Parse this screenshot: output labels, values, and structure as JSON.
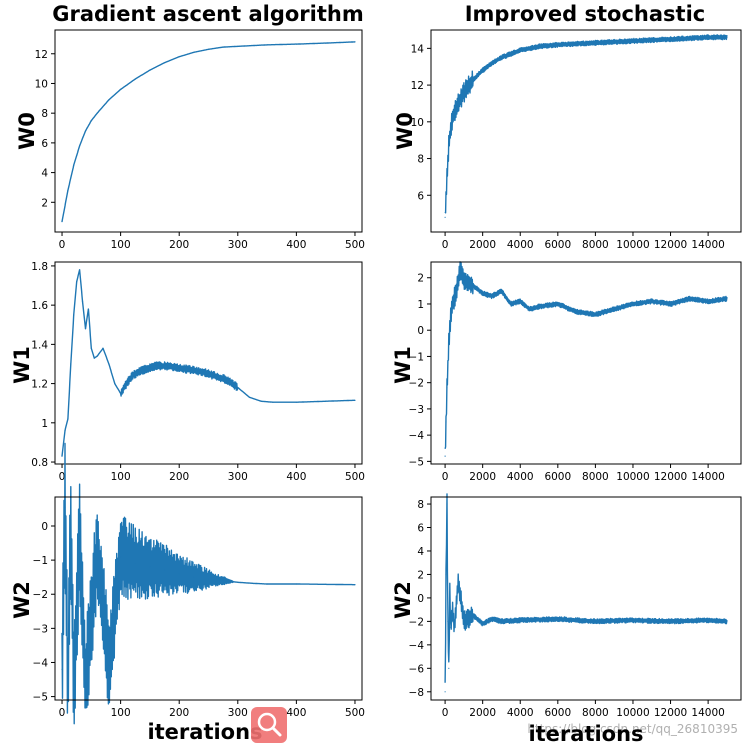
{
  "figure": {
    "left_title": "Gradient ascent algorithm",
    "right_title": "Improved stochastic",
    "left_xlabel": "iterations",
    "right_xlabel": "iterations",
    "watermark": "https://blog.csdn.net/qq_26810395",
    "badge_icon": "search-magnifier-icon",
    "line_color": "#1f77b4",
    "badge_color": "#f07070"
  },
  "chart_data": [
    {
      "type": "line",
      "id": "ga-w0",
      "title": "Gradient ascent algorithm",
      "xlabel": "",
      "ylabel": "W0",
      "xlim": [
        -12,
        512
      ],
      "ylim": [
        0,
        13.6
      ],
      "xticks": [
        0,
        100,
        200,
        300,
        400,
        500
      ],
      "yticks": [
        2,
        4,
        6,
        8,
        10,
        12
      ],
      "series": [
        {
          "name": "W0",
          "x": [
            0,
            10,
            20,
            30,
            40,
            50,
            60,
            80,
            100,
            125,
            150,
            175,
            200,
            225,
            250,
            275,
            300,
            350,
            400,
            450,
            500
          ],
          "y": [
            0.7,
            2.8,
            4.5,
            5.8,
            6.8,
            7.5,
            8.0,
            8.9,
            9.6,
            10.3,
            10.9,
            11.4,
            11.8,
            12.1,
            12.3,
            12.45,
            12.5,
            12.6,
            12.65,
            12.72,
            12.8
          ]
        }
      ]
    },
    {
      "type": "line",
      "id": "sg-w0",
      "title": "Improved stochastic",
      "xlabel": "",
      "ylabel": "W0",
      "xlim": [
        -750,
        15750
      ],
      "ylim": [
        4.0,
        15.0
      ],
      "xticks": [
        0,
        2000,
        4000,
        6000,
        8000,
        10000,
        12000,
        14000
      ],
      "yticks": [
        6,
        8,
        10,
        12,
        14
      ],
      "series": [
        {
          "name": "W0",
          "x": [
            0,
            100,
            200,
            300,
            400,
            600,
            800,
            1000,
            1500,
            2000,
            2500,
            3000,
            4000,
            5000,
            6000,
            8000,
            10000,
            12000,
            14000,
            15000
          ],
          "y": [
            4.8,
            7.0,
            8.8,
            9.6,
            10.2,
            10.8,
            11.2,
            11.6,
            12.3,
            12.8,
            13.2,
            13.5,
            13.9,
            14.1,
            14.2,
            14.3,
            14.4,
            14.5,
            14.6,
            14.6
          ]
        }
      ]
    },
    {
      "type": "line",
      "id": "ga-w1",
      "title": "",
      "xlabel": "",
      "ylabel": "W1",
      "xlim": [
        -12,
        512
      ],
      "ylim": [
        0.79,
        1.82
      ],
      "xticks": [
        0,
        100,
        200,
        300,
        400,
        500
      ],
      "yticks": [
        0.8,
        1.0,
        1.2,
        1.4,
        1.6,
        1.8
      ],
      "series": [
        {
          "name": "W1",
          "x": [
            0,
            5,
            10,
            15,
            20,
            25,
            30,
            35,
            40,
            45,
            50,
            55,
            60,
            70,
            80,
            90,
            100,
            110,
            120,
            130,
            140,
            150,
            160,
            180,
            200,
            220,
            240,
            260,
            280,
            300,
            320,
            340,
            360,
            400,
            450,
            500
          ],
          "y": [
            0.83,
            0.96,
            1.02,
            1.3,
            1.55,
            1.72,
            1.78,
            1.62,
            1.48,
            1.58,
            1.38,
            1.33,
            1.34,
            1.38,
            1.3,
            1.2,
            1.15,
            1.2,
            1.24,
            1.26,
            1.27,
            1.28,
            1.29,
            1.29,
            1.28,
            1.27,
            1.26,
            1.24,
            1.22,
            1.18,
            1.13,
            1.11,
            1.105,
            1.105,
            1.11,
            1.115
          ]
        }
      ]
    },
    {
      "type": "line",
      "id": "sg-w1",
      "title": "",
      "xlabel": "",
      "ylabel": "W1",
      "xlim": [
        -750,
        15750
      ],
      "ylim": [
        -5.1,
        2.6
      ],
      "xticks": [
        0,
        2000,
        4000,
        6000,
        8000,
        10000,
        12000,
        14000
      ],
      "yticks": [
        -5,
        -4,
        -3,
        -2,
        -1,
        0,
        1,
        2
      ],
      "series": [
        {
          "name": "W1",
          "x": [
            0,
            50,
            100,
            200,
            300,
            400,
            600,
            800,
            1000,
            1500,
            2000,
            2500,
            3000,
            3500,
            4000,
            4500,
            5000,
            6000,
            7000,
            8000,
            9000,
            10000,
            11000,
            12000,
            13000,
            14000,
            15000
          ],
          "y": [
            -4.8,
            -3.5,
            -2.2,
            -0.5,
            0.5,
            1.0,
            1.5,
            2.3,
            1.9,
            1.7,
            1.4,
            1.3,
            1.5,
            1.0,
            1.1,
            0.8,
            0.9,
            1.0,
            0.7,
            0.6,
            0.8,
            1.0,
            1.1,
            1.0,
            1.2,
            1.1,
            1.2
          ]
        }
      ]
    },
    {
      "type": "line",
      "id": "ga-w2",
      "title": "",
      "xlabel": "iterations",
      "ylabel": "W2",
      "xlim": [
        -12,
        512
      ],
      "ylim": [
        -5.1,
        0.85
      ],
      "xticks": [
        0,
        100,
        200,
        300,
        400,
        500
      ],
      "yticks": [
        -5,
        -4,
        -3,
        -2,
        -1,
        0
      ],
      "series": [
        {
          "name": "W2",
          "x": [
            0,
            5,
            10,
            15,
            20,
            30,
            40,
            60,
            80,
            100,
            125,
            150,
            175,
            200,
            225,
            250,
            275,
            300,
            325,
            350,
            400,
            450,
            500
          ],
          "y": [
            -4.2,
            0.55,
            -4.7,
            0.2,
            -4.8,
            -0.4,
            -4.6,
            -0.7,
            -4.1,
            -0.9,
            -1.1,
            -1.2,
            -1.3,
            -1.4,
            -1.5,
            -1.55,
            -1.6,
            -1.65,
            -1.68,
            -1.7,
            -1.7,
            -1.71,
            -1.72
          ]
        }
      ]
    },
    {
      "type": "line",
      "id": "sg-w2",
      "title": "",
      "xlabel": "iterations",
      "ylabel": "W2",
      "xlim": [
        -750,
        15750
      ],
      "ylim": [
        -8.7,
        8.6
      ],
      "xticks": [
        0,
        2000,
        4000,
        6000,
        8000,
        10000,
        12000,
        14000
      ],
      "yticks": [
        -8,
        -6,
        -4,
        -2,
        0,
        2,
        4,
        6,
        8
      ],
      "series": [
        {
          "name": "W2",
          "x": [
            0,
            50,
            100,
            150,
            200,
            250,
            300,
            400,
            500,
            700,
            1000,
            1500,
            2000,
            2500,
            3000,
            4000,
            6000,
            8000,
            10000,
            12000,
            14000,
            15000
          ],
          "y": [
            -8.0,
            2.0,
            8.0,
            -2.0,
            -6.0,
            0.5,
            -2.5,
            -1.0,
            -2.5,
            1.5,
            -2.0,
            -1.5,
            -2.2,
            -1.8,
            -2.0,
            -1.9,
            -1.8,
            -2.0,
            -1.9,
            -2.0,
            -1.9,
            -2.0
          ]
        }
      ]
    }
  ]
}
